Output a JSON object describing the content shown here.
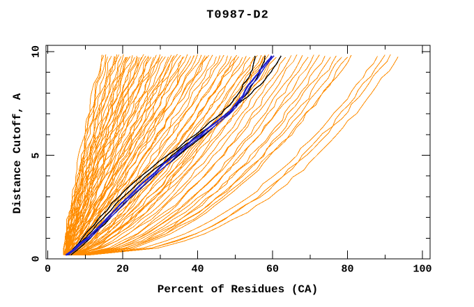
{
  "window": {
    "background": "#ffffff"
  },
  "chart_data": {
    "type": "line",
    "title": "T0987-D2",
    "xlabel": "Percent of Residues (CA)",
    "ylabel": "Distance Cutoff, A",
    "xlim": [
      0,
      100
    ],
    "ylim": [
      0,
      10
    ],
    "grid": false,
    "legend": "none",
    "x_major_ticks": [
      0,
      20,
      40,
      60,
      80,
      100
    ],
    "x_tick_labels": [
      "0",
      "20",
      "40",
      "60",
      "80",
      "100"
    ],
    "x_minor_ticks": [
      10,
      30,
      50,
      70,
      90
    ],
    "y_major_ticks": [
      0,
      5,
      10
    ],
    "y_tick_labels": [
      "0",
      "5",
      "10"
    ],
    "y_minor_ticks": [
      1,
      2,
      3,
      4,
      6,
      7,
      8,
      9
    ],
    "colors": {
      "orange_models": "#ff8c00",
      "black_highlight": "#000000",
      "navy_highlight": "#2222cc",
      "axis": "#000000",
      "background": "#ffffff"
    },
    "description_of_series": {
      "orange_curves": "each entry is [start_percent_at_cutoff_0, percent_at_cutoff_9.8, shape_exponent]",
      "black_curves": "each entry is list of [distance_cutoff, percent_of_residues] points",
      "navy_curves": "each entry is list of [distance_cutoff, percent_of_residues] points"
    },
    "orange_curves": [
      [
        4.4,
        14.5,
        1.3
      ],
      [
        4.6,
        15.5,
        1.25
      ],
      [
        4.2,
        16.0,
        1.2
      ],
      [
        4.8,
        17.0,
        1.28
      ],
      [
        4.5,
        17.8,
        1.18
      ],
      [
        5.0,
        18.4,
        1.22
      ],
      [
        4.3,
        19.0,
        1.15
      ],
      [
        4.9,
        19.6,
        1.25
      ],
      [
        4.5,
        20.2,
        1.12
      ],
      [
        5.2,
        20.8,
        1.2
      ],
      [
        4.4,
        21.4,
        1.16
      ],
      [
        5.0,
        22.0,
        1.1
      ],
      [
        4.6,
        22.6,
        1.18
      ],
      [
        5.3,
        23.2,
        1.08
      ],
      [
        4.4,
        23.8,
        1.15
      ],
      [
        5.1,
        24.4,
        1.1
      ],
      [
        4.7,
        25.0,
        1.05
      ],
      [
        5.4,
        25.6,
        1.12
      ],
      [
        4.5,
        26.2,
        1.08
      ],
      [
        5.2,
        26.9,
        1.02
      ],
      [
        4.8,
        27.6,
        1.1
      ],
      [
        5.5,
        28.3,
        1.0
      ],
      [
        4.6,
        29.0,
        1.06
      ],
      [
        5.2,
        29.8,
        0.98
      ],
      [
        4.9,
        30.6,
        1.04
      ],
      [
        5.6,
        31.4,
        0.96
      ],
      [
        4.7,
        32.2,
        1.0
      ],
      [
        5.3,
        33.0,
        0.94
      ],
      [
        5.0,
        33.8,
        0.98
      ],
      [
        5.7,
        34.6,
        0.92
      ],
      [
        4.8,
        35.5,
        0.96
      ],
      [
        5.4,
        36.4,
        0.9
      ],
      [
        5.1,
        37.3,
        0.94
      ],
      [
        5.8,
        38.2,
        0.88
      ],
      [
        4.9,
        39.1,
        0.92
      ],
      [
        5.5,
        40.0,
        0.86
      ],
      [
        5.2,
        41.0,
        0.9
      ],
      [
        5.9,
        42.0,
        0.84
      ],
      [
        5.0,
        43.0,
        0.88
      ],
      [
        5.6,
        44.0,
        0.82
      ],
      [
        4.5,
        15.0,
        1.22
      ],
      [
        4.7,
        18.0,
        1.2
      ],
      [
        5.0,
        21.0,
        1.14
      ],
      [
        4.6,
        24.0,
        1.1
      ],
      [
        5.3,
        27.0,
        1.05
      ],
      [
        4.8,
        30.0,
        1.0
      ],
      [
        5.5,
        33.5,
        0.95
      ],
      [
        5.0,
        36.0,
        0.93
      ],
      [
        5.7,
        39.0,
        0.9
      ],
      [
        5.2,
        42.5,
        0.86
      ],
      [
        6.0,
        50.5,
        0.74
      ],
      [
        6.6,
        57.5,
        0.7
      ],
      [
        5.3,
        45.0,
        0.8
      ],
      [
        6.0,
        46.0,
        0.78
      ],
      [
        5.5,
        47.0,
        0.82
      ],
      [
        6.2,
        48.0,
        0.75
      ],
      [
        5.7,
        49.0,
        0.8
      ],
      [
        6.4,
        50.0,
        0.72
      ],
      [
        5.9,
        51.0,
        0.78
      ],
      [
        6.6,
        52.0,
        0.7
      ],
      [
        6.1,
        53.0,
        0.76
      ],
      [
        6.8,
        54.0,
        0.68
      ],
      [
        6.3,
        55.0,
        0.74
      ],
      [
        7.0,
        56.0,
        0.66
      ],
      [
        6.5,
        57.0,
        0.72
      ],
      [
        7.2,
        58.0,
        0.65
      ],
      [
        6.7,
        59.0,
        0.7
      ],
      [
        7.4,
        60.0,
        0.63
      ],
      [
        6.9,
        61.0,
        0.68
      ],
      [
        7.6,
        62.0,
        0.62
      ],
      [
        7.0,
        63.5,
        0.6
      ],
      [
        7.8,
        65.0,
        0.56
      ],
      [
        7.2,
        66.5,
        0.58
      ],
      [
        8.0,
        68.0,
        0.54
      ],
      [
        7.5,
        69.5,
        0.56
      ],
      [
        8.2,
        71.0,
        0.52
      ],
      [
        7.7,
        72.5,
        0.55
      ],
      [
        8.5,
        74.0,
        0.51
      ],
      [
        7.9,
        75.5,
        0.53
      ],
      [
        8.7,
        77.0,
        0.5
      ],
      [
        8.1,
        78.5,
        0.52
      ],
      [
        8.9,
        80.0,
        0.49
      ],
      [
        8.3,
        81.0,
        0.51
      ],
      [
        9.2,
        88.0,
        0.47
      ],
      [
        9.8,
        90.0,
        0.45
      ],
      [
        10.4,
        91.5,
        0.46
      ],
      [
        11.0,
        93.5,
        0.44
      ]
    ],
    "black_curves": [
      [
        [
          0.18,
          5.6
        ],
        [
          1,
          9.2
        ],
        [
          2,
          13.8
        ],
        [
          3,
          19.0
        ],
        [
          4,
          25.0
        ],
        [
          5,
          32.0
        ],
        [
          6,
          39.5
        ],
        [
          6.6,
          43.2
        ],
        [
          7,
          46.3
        ],
        [
          7.6,
          49.4
        ],
        [
          8,
          51.0
        ],
        [
          8.6,
          53.0
        ],
        [
          9,
          54.2
        ],
        [
          9.4,
          54.9
        ],
        [
          9.8,
          55.3
        ]
      ],
      [
        [
          0.18,
          5.1
        ],
        [
          1,
          10.0
        ],
        [
          2,
          15.0
        ],
        [
          3,
          20.2
        ],
        [
          4,
          26.2
        ],
        [
          5,
          33.2
        ],
        [
          5.5,
          36.6
        ],
        [
          6,
          40.2
        ],
        [
          6.5,
          44.0
        ],
        [
          7,
          47.6
        ],
        [
          7.5,
          51.0
        ],
        [
          8,
          54.4
        ],
        [
          8.6,
          57.8
        ],
        [
          9.2,
          60.2
        ],
        [
          9.8,
          62.3
        ]
      ],
      [
        [
          0.18,
          6.1
        ],
        [
          1,
          11.4
        ],
        [
          2,
          16.8
        ],
        [
          3,
          22.4
        ],
        [
          4,
          28.4
        ],
        [
          5,
          35.0
        ],
        [
          6,
          42.0
        ],
        [
          7,
          48.4
        ],
        [
          8,
          53.4
        ],
        [
          9,
          56.6
        ],
        [
          9.8,
          58.0
        ]
      ]
    ],
    "navy_curves": [
      [
        [
          0.18,
          4.8
        ],
        [
          1,
          10.6
        ],
        [
          2,
          16.1
        ],
        [
          3,
          21.6
        ],
        [
          4,
          27.6
        ],
        [
          4.6,
          31.0
        ],
        [
          5,
          34.0
        ],
        [
          5.6,
          37.8
        ],
        [
          6,
          41.0
        ],
        [
          6.6,
          45.0
        ],
        [
          7,
          48.0
        ],
        [
          7.6,
          50.8
        ],
        [
          8,
          52.4
        ],
        [
          8.6,
          54.6
        ],
        [
          9,
          56.4
        ],
        [
          9.4,
          58.0
        ],
        [
          9.8,
          59.8
        ]
      ],
      [
        [
          0.18,
          5.3
        ],
        [
          1,
          11.2
        ],
        [
          2,
          16.7
        ],
        [
          3,
          22.2
        ],
        [
          4,
          28.2
        ],
        [
          5,
          34.6
        ],
        [
          6,
          41.6
        ],
        [
          7,
          48.6
        ],
        [
          8,
          53.0
        ],
        [
          9,
          57.0
        ],
        [
          9.8,
          60.4
        ]
      ]
    ]
  }
}
